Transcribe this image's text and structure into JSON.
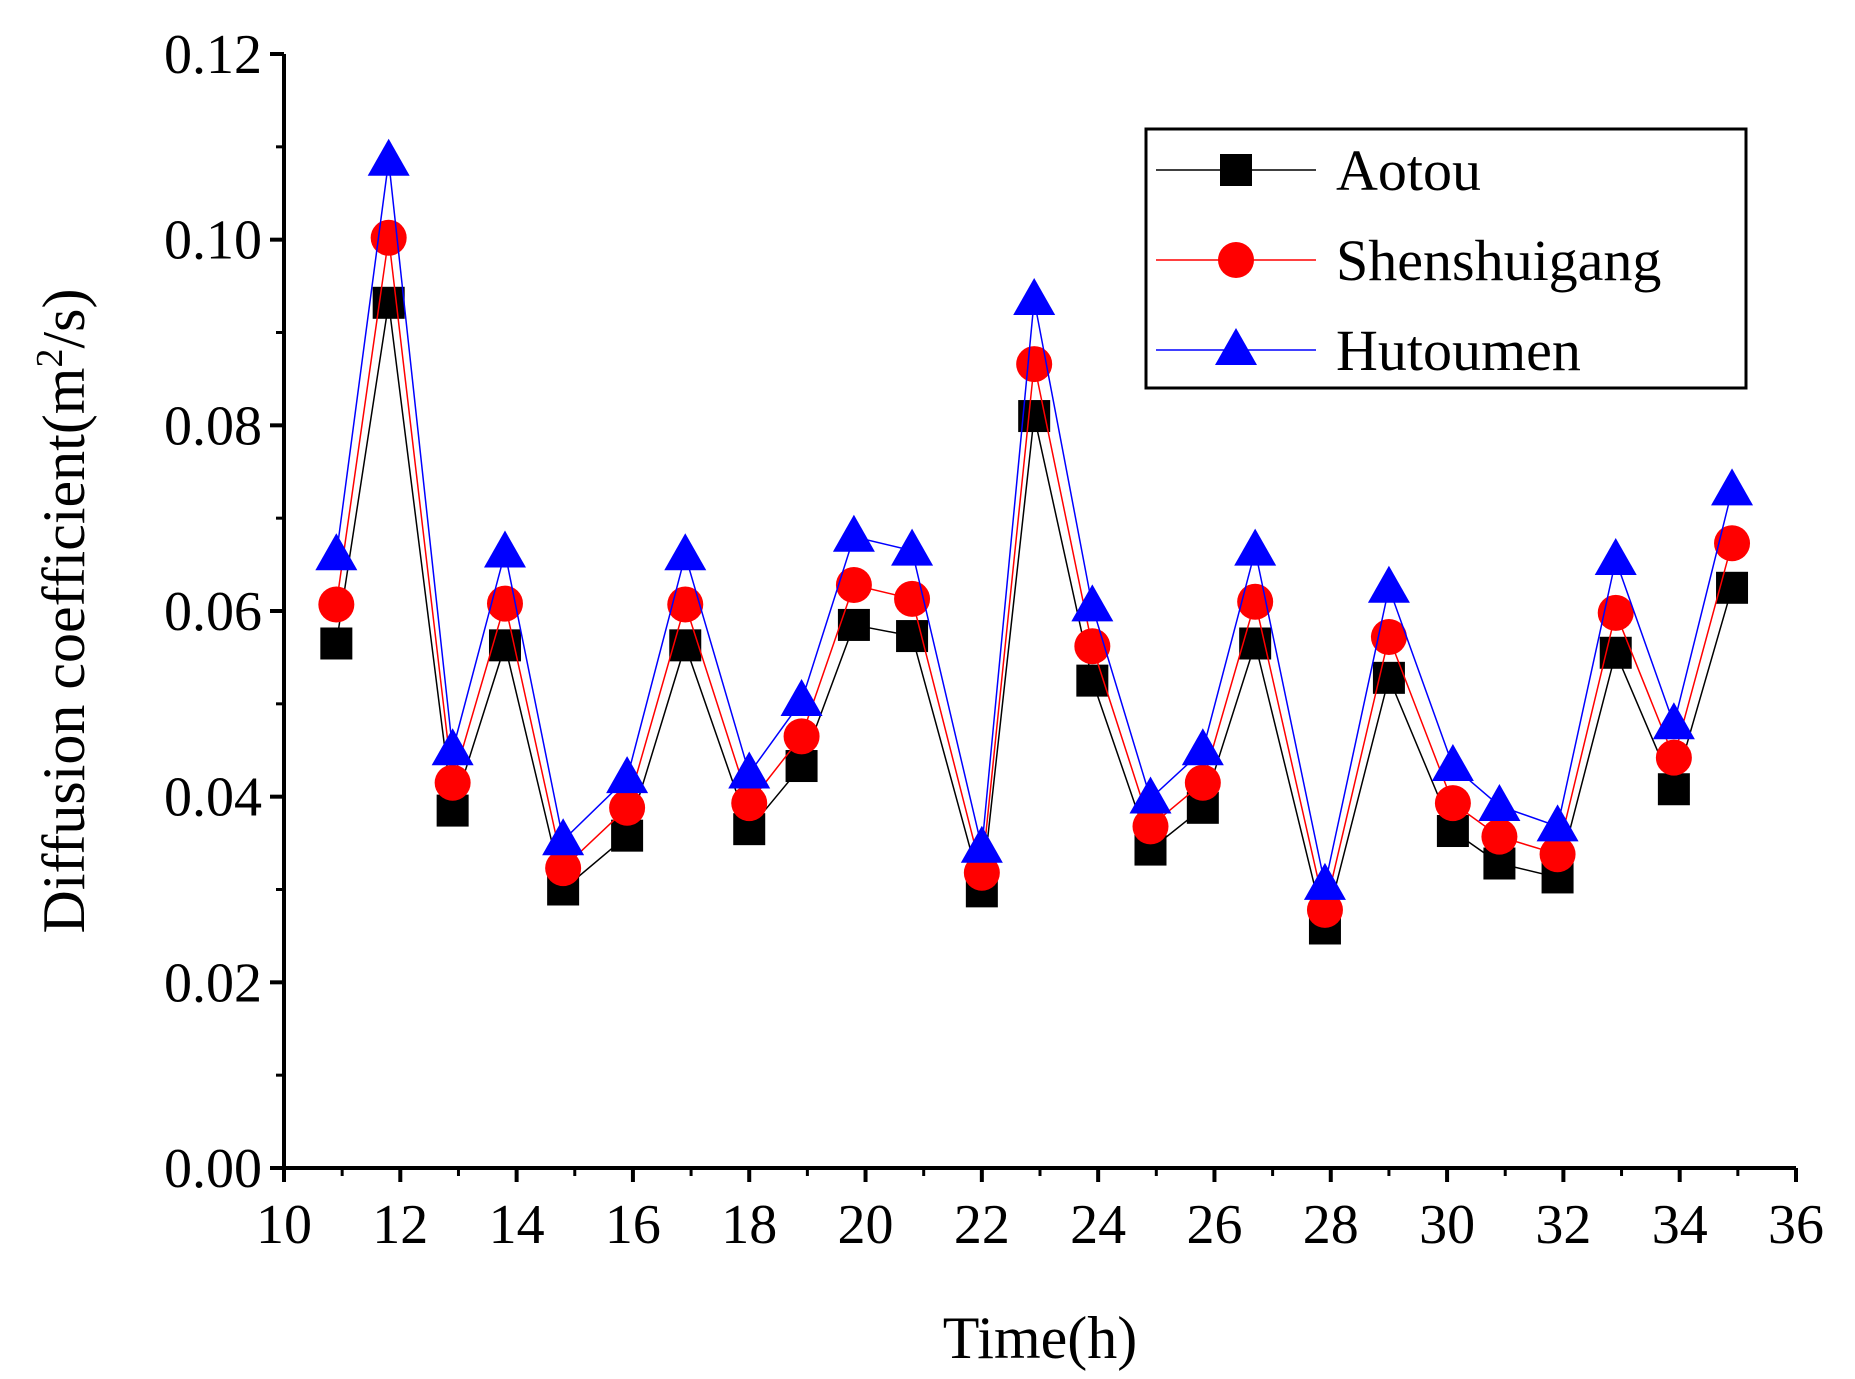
{
  "chart_data": {
    "type": "line",
    "title": "",
    "xlabel": "Time(h)",
    "ylabel_main": "Diffusion coefficient(m",
    "ylabel_sup": "2",
    "ylabel_tail": "/s)",
    "xlim": [
      10,
      36
    ],
    "ylim": [
      0,
      0.12
    ],
    "xticks": [
      "10",
      "12",
      "14",
      "16",
      "18",
      "20",
      "22",
      "24",
      "26",
      "28",
      "30",
      "32",
      "34",
      "36"
    ],
    "xtick_values": [
      10,
      12,
      14,
      16,
      18,
      20,
      22,
      24,
      26,
      28,
      30,
      32,
      34,
      36
    ],
    "yticks": [
      "0.00",
      "0.02",
      "0.04",
      "0.06",
      "0.08",
      "0.10",
      "0.12"
    ],
    "ytick_values": [
      0,
      0.02,
      0.04,
      0.06,
      0.08,
      0.1,
      0.12
    ],
    "legend_position": "top-right",
    "x": [
      10.9,
      11.8,
      12.9,
      13.8,
      14.8,
      15.9,
      16.9,
      18.0,
      18.9,
      19.8,
      20.8,
      22.0,
      22.9,
      23.9,
      24.9,
      25.8,
      26.7,
      27.9,
      29.0,
      30.1,
      30.9,
      31.9,
      32.9,
      33.9,
      34.9
    ],
    "series": [
      {
        "name": "Aotou",
        "marker": "square",
        "color": "#000000",
        "values": [
          0.0565,
          0.0932,
          0.0385,
          0.0563,
          0.03,
          0.0358,
          0.0563,
          0.0365,
          0.0433,
          0.0585,
          0.0573,
          0.0298,
          0.081,
          0.0525,
          0.0343,
          0.0388,
          0.0565,
          0.0258,
          0.0528,
          0.0363,
          0.0328,
          0.0313,
          0.0555,
          0.0408,
          0.0625
        ]
      },
      {
        "name": "Shenshuigang",
        "marker": "circle",
        "color": "#ff0000",
        "values": [
          0.0607,
          0.1002,
          0.0415,
          0.0608,
          0.0323,
          0.0388,
          0.0607,
          0.0393,
          0.0465,
          0.0628,
          0.0613,
          0.0318,
          0.0866,
          0.0562,
          0.0368,
          0.0415,
          0.061,
          0.0278,
          0.0572,
          0.0393,
          0.0357,
          0.0338,
          0.0598,
          0.0442,
          0.0673
        ]
      },
      {
        "name": "Hutoumen",
        "marker": "triangle",
        "color": "#0000ff",
        "values": [
          0.066,
          0.1085,
          0.045,
          0.0663,
          0.0353,
          0.042,
          0.066,
          0.0425,
          0.0503,
          0.068,
          0.0665,
          0.0345,
          0.0935,
          0.0605,
          0.0398,
          0.045,
          0.0665,
          0.0305,
          0.0625,
          0.0433,
          0.039,
          0.0368,
          0.0655,
          0.0478,
          0.073
        ]
      }
    ]
  }
}
